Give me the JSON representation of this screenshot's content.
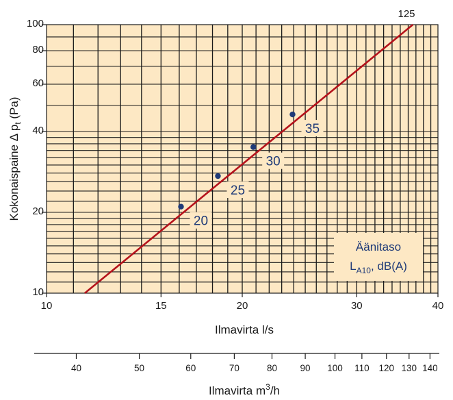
{
  "colors": {
    "plot_background": "#fde8c4",
    "grid": "#1a1a1a",
    "line": "#b5121b",
    "points": "#1f3a78",
    "label_text": "#1f3a78"
  },
  "chart_data": {
    "type": "line",
    "x_scale": "log",
    "y_scale": "log",
    "xlim": [
      10,
      40
    ],
    "ylim": [
      10,
      100
    ],
    "xlabel": "Ilmavirta l/s",
    "ylabel": "Kokonaispaine Δ p",
    "ylabel_sub": "t",
    "ylabel_unit": " (Pa)",
    "x_ticks": [
      10,
      15,
      20,
      30,
      40
    ],
    "y_ticks": [
      10,
      20,
      40,
      60,
      80,
      100
    ],
    "grid": true,
    "series": [
      {
        "x": [
          11.45,
          36.6
        ],
        "y": [
          10,
          100
        ]
      }
    ],
    "line_end_label": "125",
    "sound_points": [
      {
        "x": 16.1,
        "y": 21.0,
        "label": "20"
      },
      {
        "x": 18.35,
        "y": 27.3,
        "label": "25"
      },
      {
        "x": 20.8,
        "y": 35.0,
        "label": "30"
      },
      {
        "x": 23.9,
        "y": 46.3,
        "label": "35"
      }
    ],
    "secondary_x_axis": {
      "label": "Ilmavirta m",
      "label_sup": "3",
      "label_tail": "/h",
      "ticks": [
        40,
        50,
        60,
        70,
        80,
        90,
        100,
        110,
        120,
        130,
        140
      ],
      "conversion_note": "m3/h = l/s × 3.6"
    },
    "legend": {
      "line1": "Äänitaso",
      "line2_main": "L",
      "line2_sub": "A10",
      "line2_tail": ", dB(A)"
    }
  }
}
